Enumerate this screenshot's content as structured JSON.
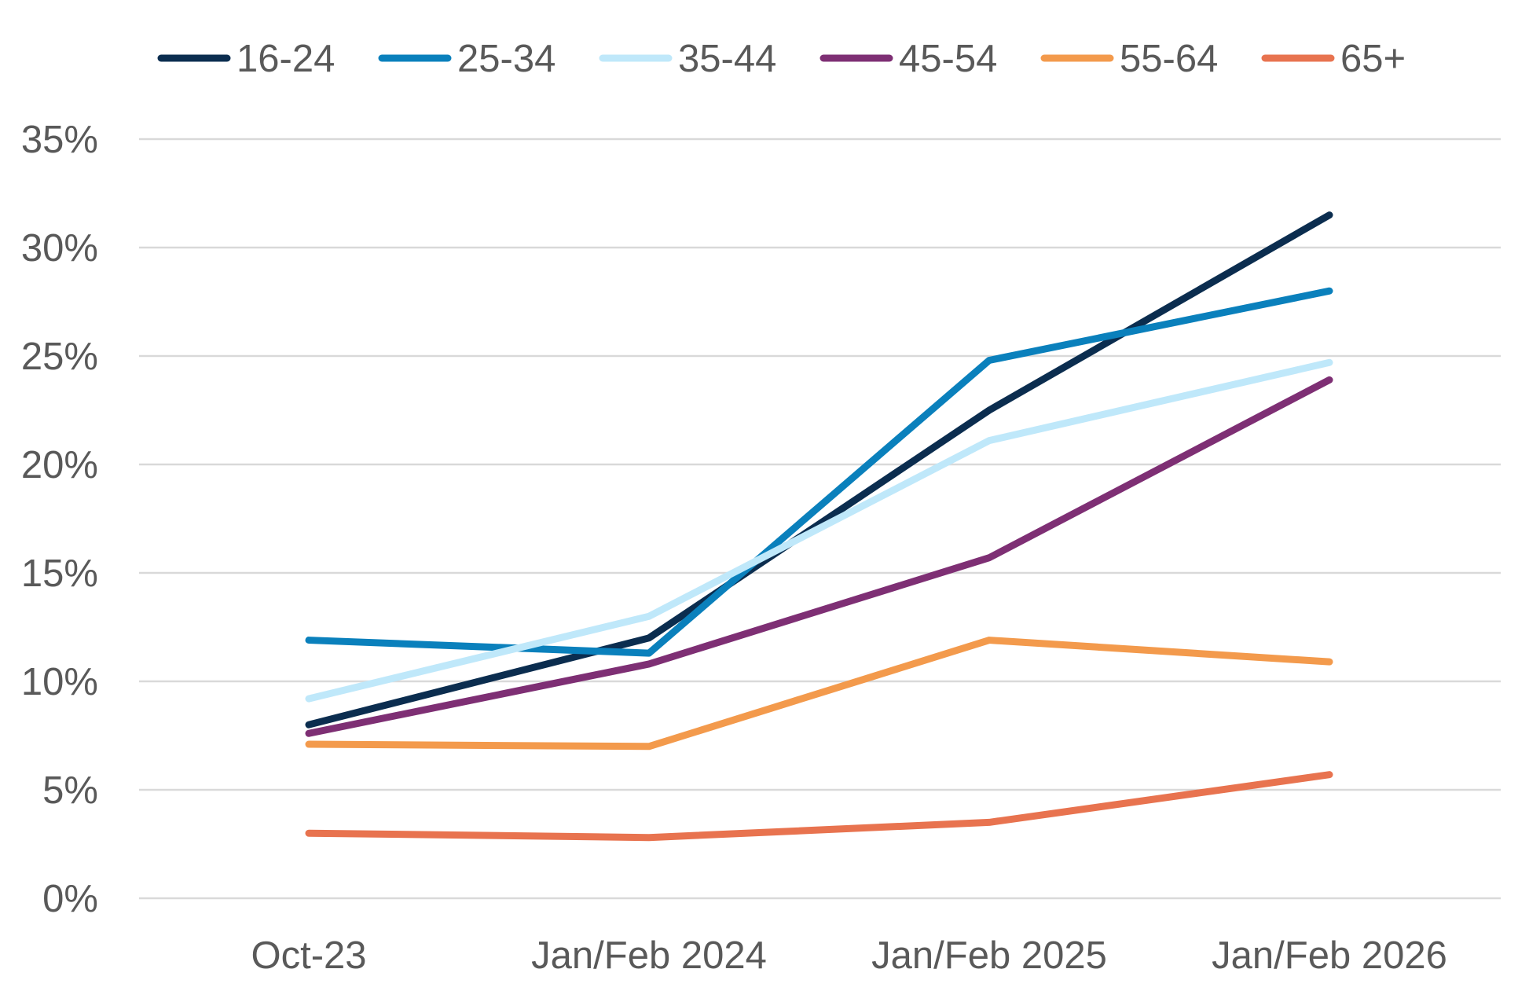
{
  "chart_data": {
    "type": "line",
    "title": "",
    "xlabel": "",
    "ylabel": "",
    "categories": [
      "Oct-23",
      "Jan/Feb 2024",
      "Jan/Feb 2025",
      "Jan/Feb 2026"
    ],
    "ylim": [
      0,
      35
    ],
    "y_ticks": [
      0,
      5,
      10,
      15,
      20,
      25,
      30,
      35
    ],
    "y_tick_labels": [
      "0%",
      "5%",
      "10%",
      "15%",
      "20%",
      "25%",
      "30%",
      "35%"
    ],
    "grid": true,
    "legend_position": "top",
    "series": [
      {
        "name": "16-24",
        "color": "#0b2d4f",
        "values": [
          8.0,
          12.0,
          22.5,
          31.5
        ]
      },
      {
        "name": "25-34",
        "color": "#0a80bc",
        "values": [
          11.9,
          11.3,
          24.8,
          28.0
        ]
      },
      {
        "name": "35-44",
        "color": "#bfe8fa",
        "values": [
          9.2,
          13.0,
          21.1,
          24.7
        ]
      },
      {
        "name": "45-54",
        "color": "#7e2f74",
        "values": [
          7.6,
          10.8,
          15.7,
          23.9
        ]
      },
      {
        "name": "55-64",
        "color": "#f39a4c",
        "values": [
          7.1,
          7.0,
          11.9,
          10.9
        ]
      },
      {
        "name": "65+",
        "color": "#e8734f",
        "values": [
          3.0,
          2.8,
          3.5,
          5.7
        ]
      }
    ]
  }
}
